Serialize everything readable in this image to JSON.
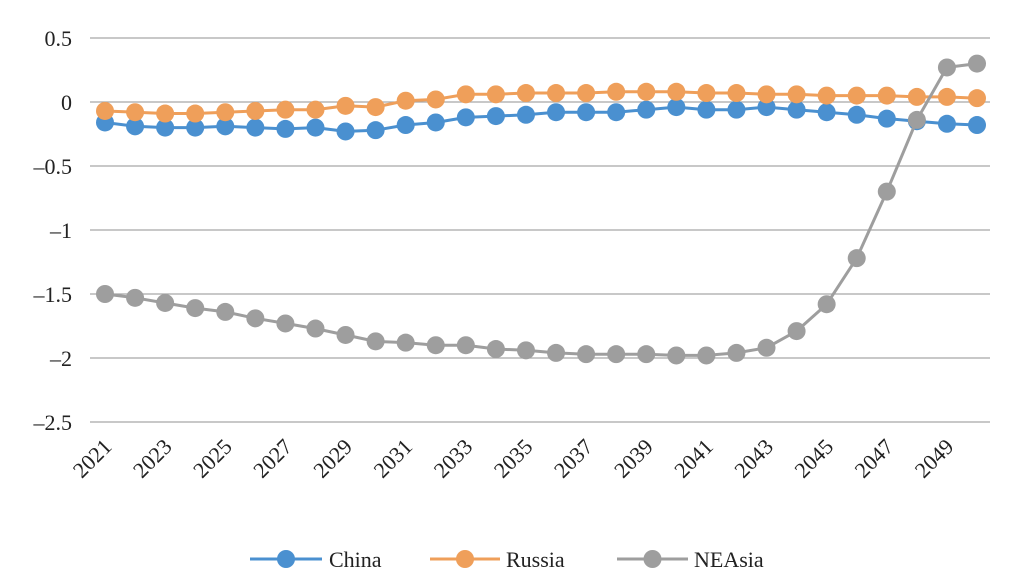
{
  "chart_data": {
    "type": "line",
    "title": "",
    "xlabel": "",
    "ylabel": "",
    "ylim": [
      -2.5,
      0.5
    ],
    "yticks": [
      0.5,
      0,
      -0.5,
      -1,
      -1.5,
      -2,
      -2.5
    ],
    "ytick_labels": [
      "0.5",
      "0",
      "–0.5",
      "–1",
      "–1.5",
      "–2",
      "–2.5"
    ],
    "x": [
      2021,
      2022,
      2023,
      2024,
      2025,
      2026,
      2027,
      2028,
      2029,
      2030,
      2031,
      2032,
      2033,
      2034,
      2035,
      2036,
      2037,
      2038,
      2039,
      2040,
      2041,
      2042,
      2043,
      2044,
      2045,
      2046,
      2047,
      2048,
      2049,
      2050
    ],
    "xtick_labels": [
      "2021",
      "2023",
      "2025",
      "2027",
      "2029",
      "2031",
      "2033",
      "2035",
      "2037",
      "2039",
      "2041",
      "2043",
      "2045",
      "2047",
      "2049"
    ],
    "grid": true,
    "legend_position": "bottom",
    "series": [
      {
        "name": "China",
        "color": "#4a90d0",
        "values": [
          -0.16,
          -0.19,
          -0.2,
          -0.2,
          -0.19,
          -0.2,
          -0.21,
          -0.2,
          -0.23,
          -0.22,
          -0.18,
          -0.16,
          -0.12,
          -0.11,
          -0.1,
          -0.08,
          -0.08,
          -0.08,
          -0.06,
          -0.04,
          -0.06,
          -0.06,
          -0.04,
          -0.06,
          -0.08,
          -0.1,
          -0.13,
          -0.15,
          -0.17,
          -0.18
        ]
      },
      {
        "name": "Russia",
        "color": "#ef9f5a",
        "values": [
          -0.07,
          -0.08,
          -0.09,
          -0.09,
          -0.08,
          -0.07,
          -0.06,
          -0.06,
          -0.03,
          -0.04,
          0.01,
          0.02,
          0.06,
          0.06,
          0.07,
          0.07,
          0.07,
          0.08,
          0.08,
          0.08,
          0.07,
          0.07,
          0.06,
          0.06,
          0.05,
          0.05,
          0.05,
          0.04,
          0.04,
          0.03
        ]
      },
      {
        "name": "NEAsia",
        "color": "#9e9e9e",
        "values": [
          -1.5,
          -1.53,
          -1.57,
          -1.61,
          -1.64,
          -1.69,
          -1.73,
          -1.77,
          -1.82,
          -1.87,
          -1.88,
          -1.9,
          -1.9,
          -1.93,
          -1.94,
          -1.96,
          -1.97,
          -1.97,
          -1.97,
          -1.98,
          -1.98,
          -1.96,
          -1.92,
          -1.79,
          -1.58,
          -1.22,
          -0.7,
          -0.14,
          0.27,
          0.3
        ]
      }
    ]
  }
}
